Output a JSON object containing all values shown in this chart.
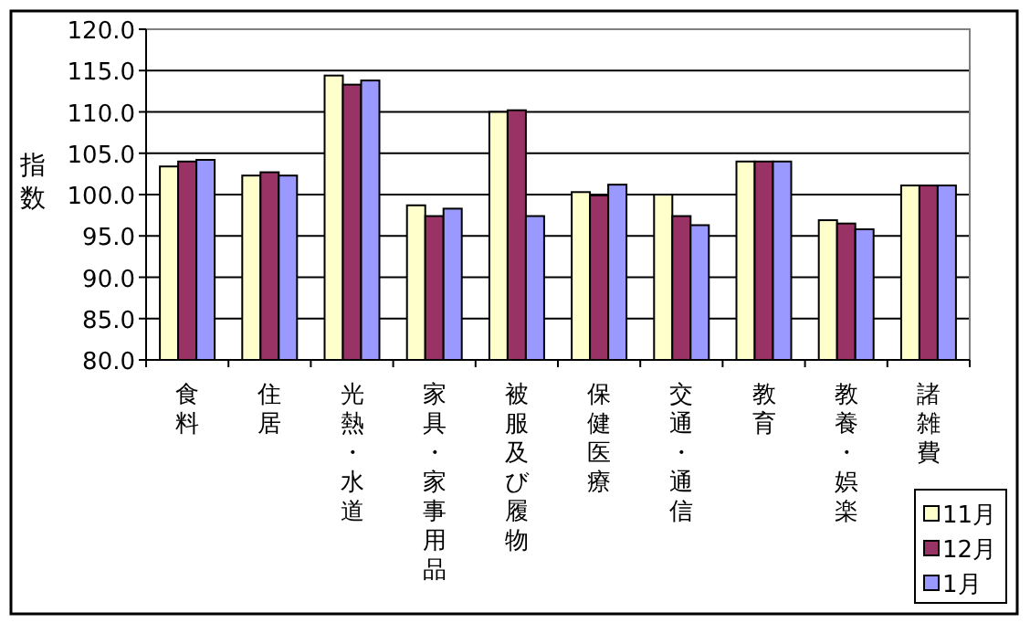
{
  "chart_data": {
    "type": "bar",
    "ylabel": "指数",
    "categories": [
      "食料",
      "住居",
      "光熱・水道",
      "家具・家事用品",
      "被服及び履物",
      "保健医療",
      "交通・通信",
      "教育",
      "教養・娯楽",
      "諸雑費"
    ],
    "series": [
      {
        "name": "11月",
        "color": "#ffffcc",
        "values": [
          103.4,
          102.3,
          114.4,
          98.7,
          110.0,
          100.3,
          100.0,
          104.0,
          96.9,
          101.1
        ]
      },
      {
        "name": "12月",
        "color": "#993366",
        "values": [
          104.0,
          102.7,
          113.3,
          97.4,
          110.2,
          99.9,
          97.4,
          104.0,
          96.5,
          101.1
        ]
      },
      {
        "name": "1月",
        "color": "#9999ff",
        "values": [
          104.2,
          102.3,
          113.8,
          98.3,
          97.4,
          101.2,
          96.3,
          104.0,
          95.8,
          101.1
        ]
      }
    ],
    "ylim": [
      80,
      120
    ],
    "yticks": [
      {
        "value": 80,
        "label": "80.0"
      },
      {
        "value": 85,
        "label": "85.0"
      },
      {
        "value": 90,
        "label": "90.0"
      },
      {
        "value": 95,
        "label": "95.0"
      },
      {
        "value": 100,
        "label": "100.0"
      },
      {
        "value": 105,
        "label": "105.0"
      },
      {
        "value": 110,
        "label": "110.0"
      },
      {
        "value": 115,
        "label": "115.0"
      },
      {
        "value": 120,
        "label": "120.0"
      }
    ],
    "grid": "y",
    "legend": "bottom right"
  }
}
